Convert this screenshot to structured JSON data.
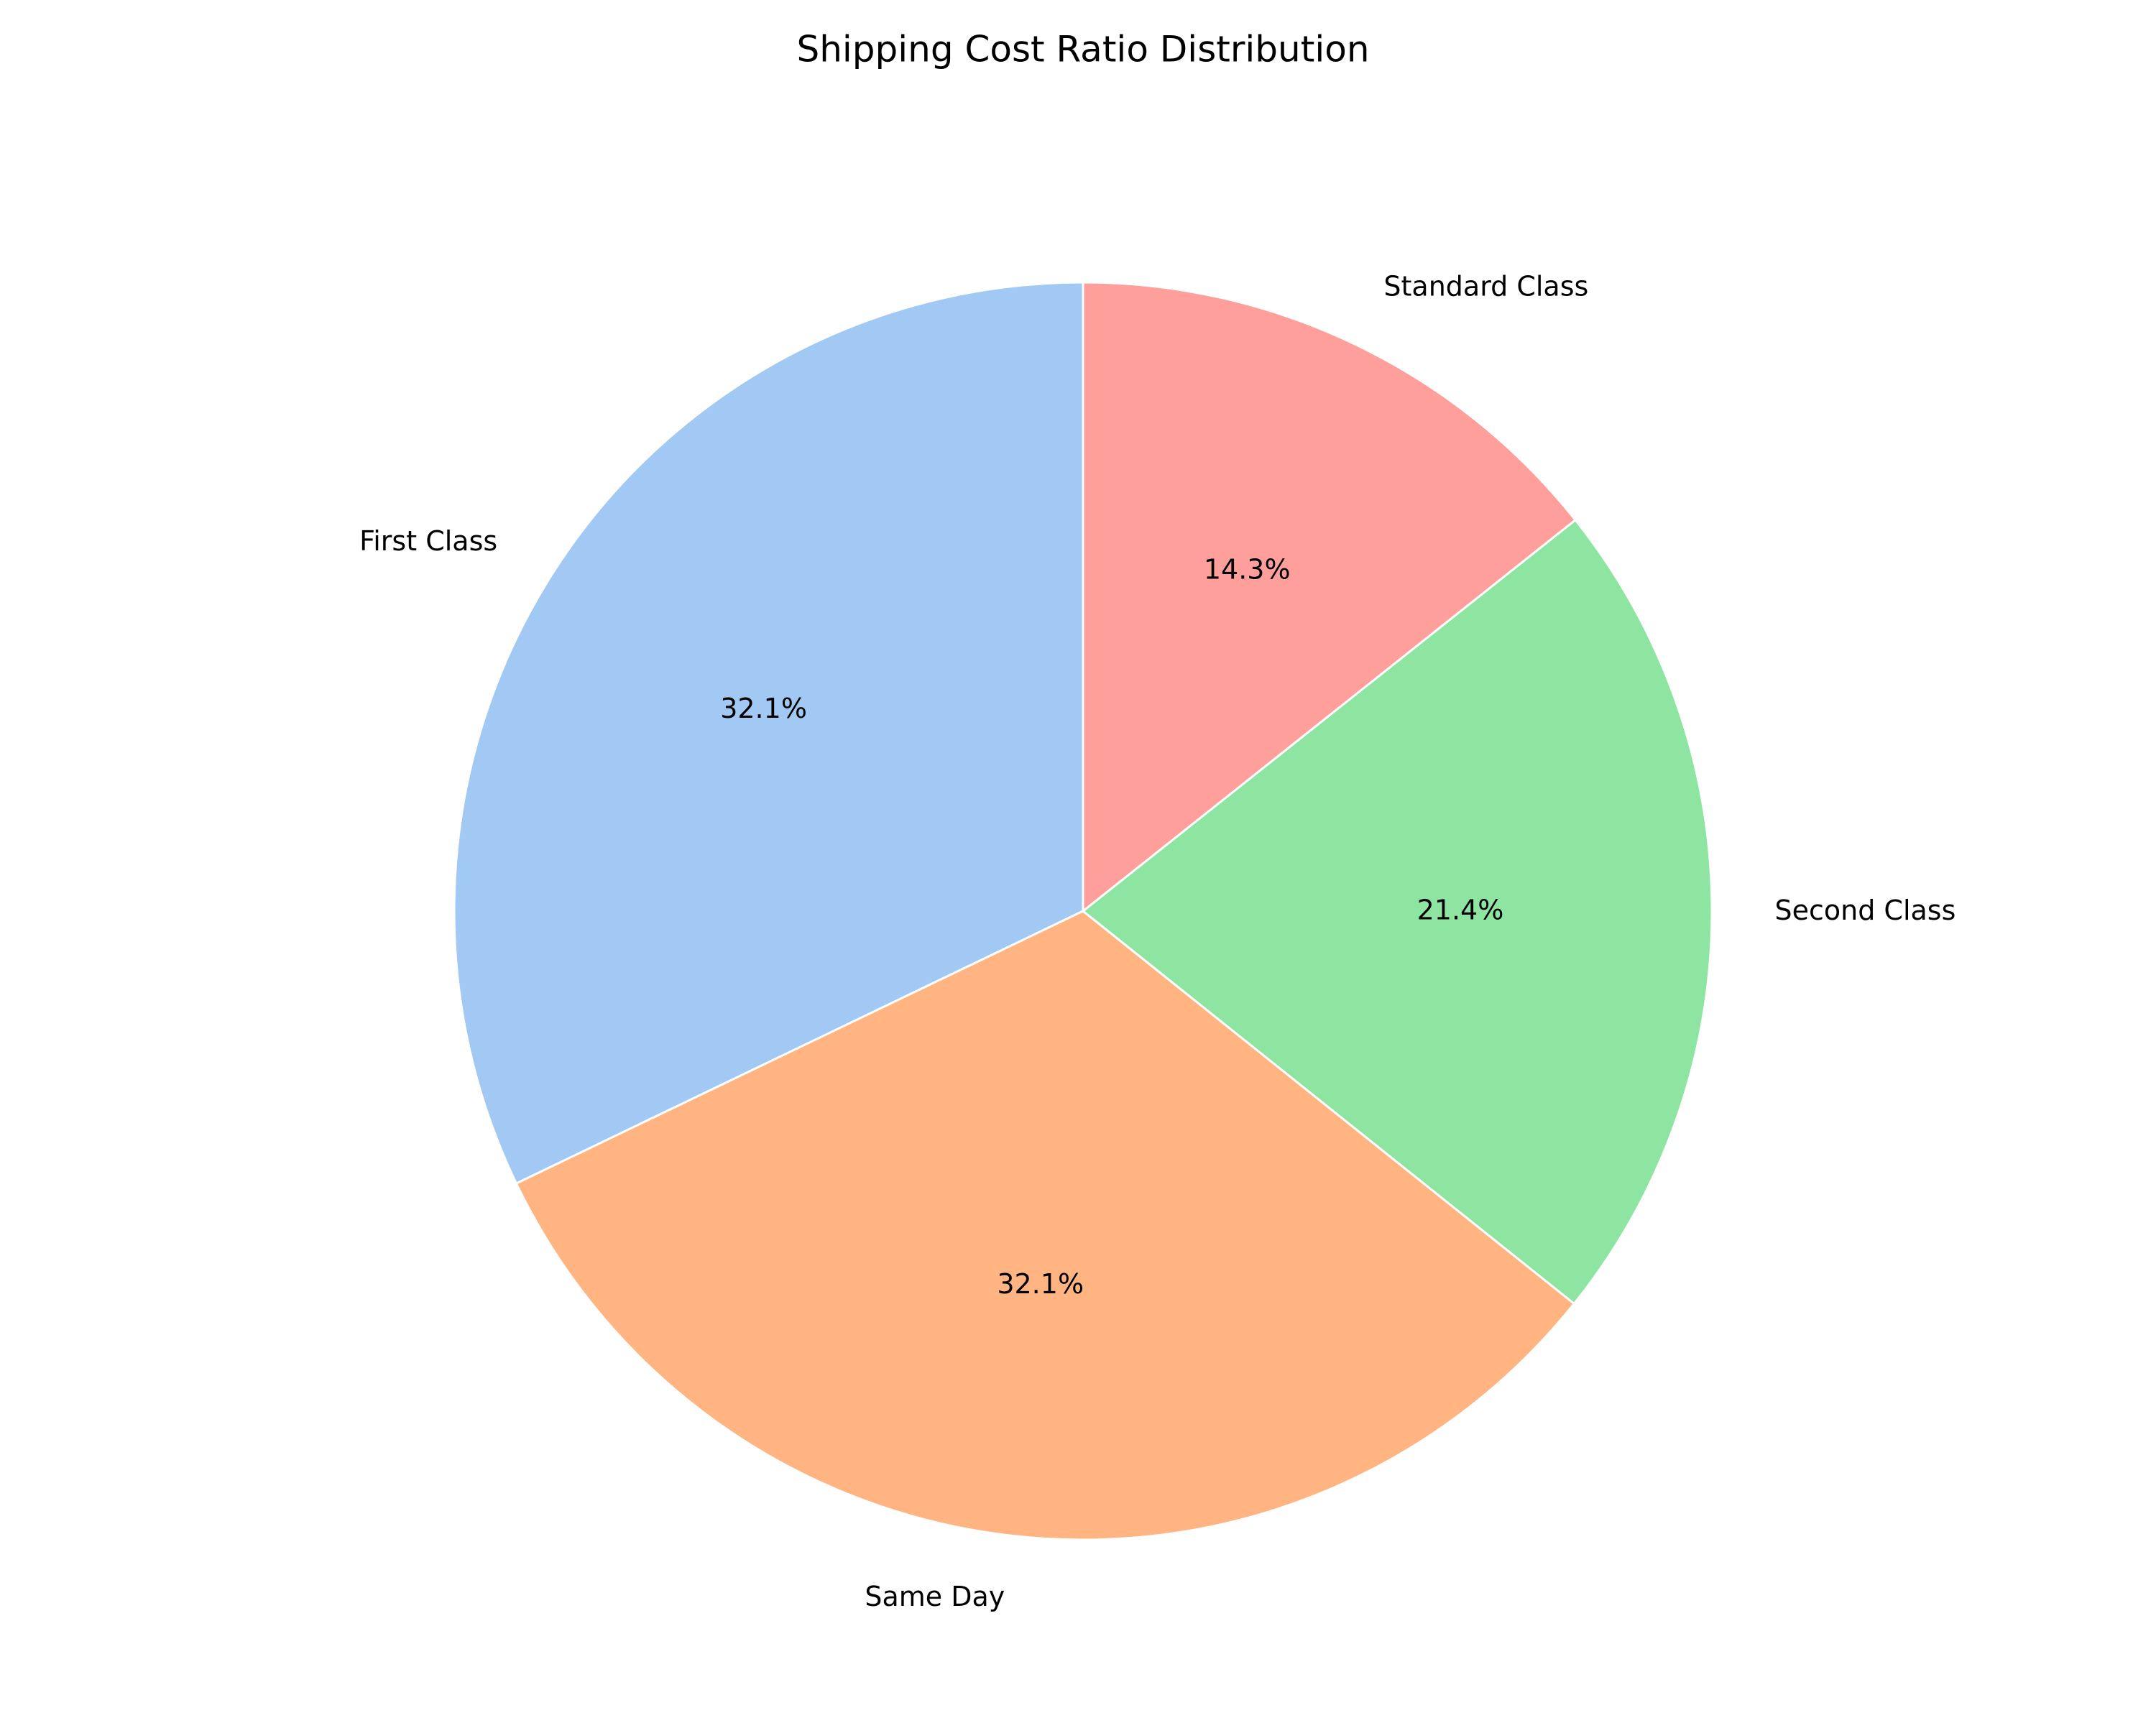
{
  "chart_data": {
    "type": "pie",
    "title": "Shipping Cost Ratio Distribution",
    "categories": [
      "First Class",
      "Same Day",
      "Second Class",
      "Standard Class"
    ],
    "values": [
      32.1,
      32.1,
      21.4,
      14.3
    ],
    "value_labels": [
      "32.1%",
      "32.1%",
      "21.4%",
      "14.3%"
    ],
    "colors": [
      "#a1c9f4",
      "#ffb482",
      "#8de5a1",
      "#ff9f9b"
    ],
    "edge_color": "#ffffff",
    "start_angle_deg": 90,
    "direction": "counterclockwise",
    "legend": "none"
  }
}
